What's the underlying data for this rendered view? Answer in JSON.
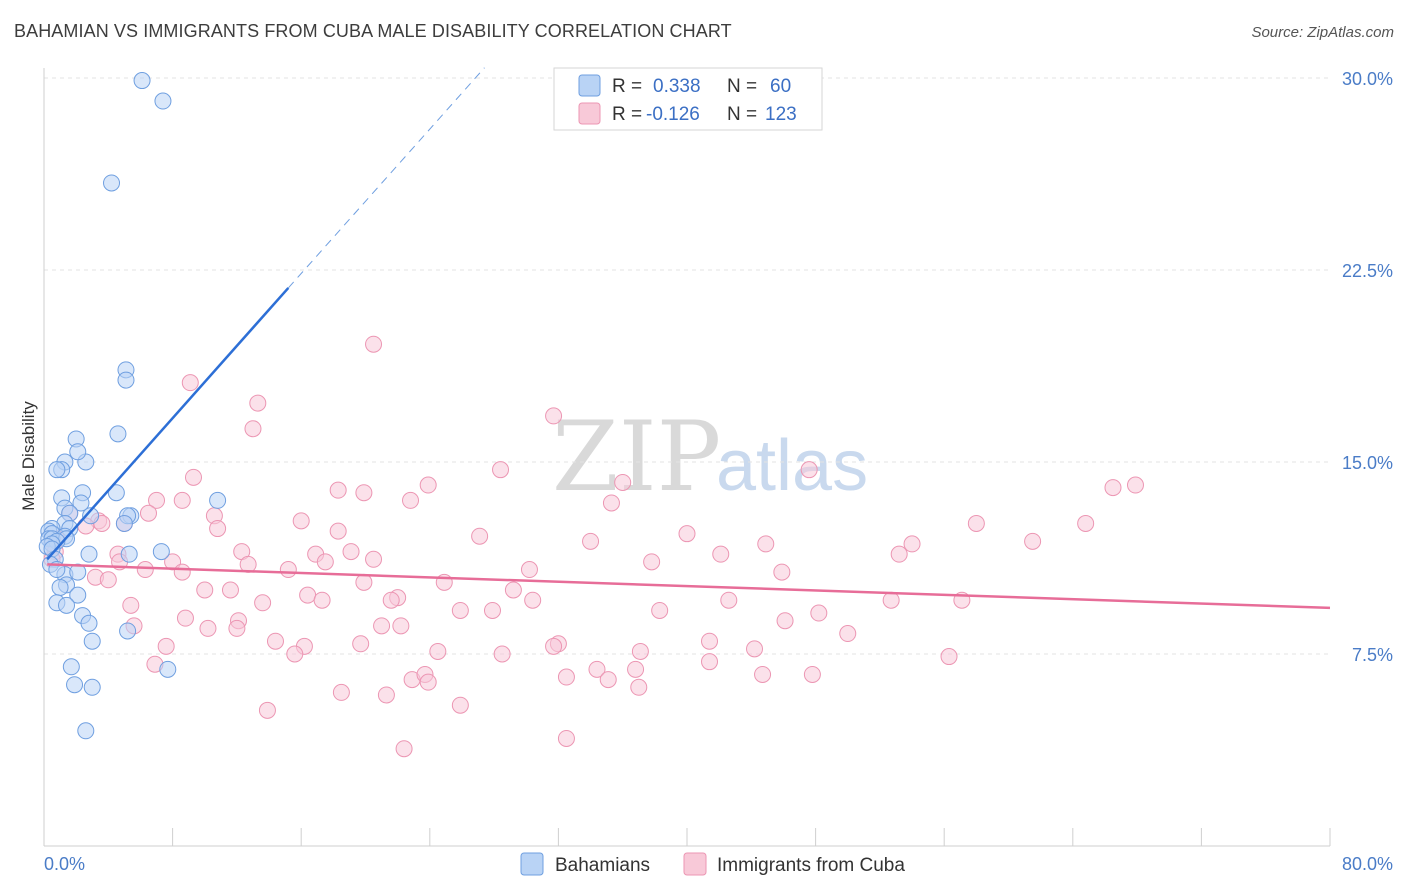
{
  "header": {
    "title": "BAHAMIAN VS IMMIGRANTS FROM CUBA MALE DISABILITY CORRELATION CHART",
    "source": "Source: ZipAtlas.com"
  },
  "watermark": {
    "zip": "ZIP",
    "atlas": "atlas"
  },
  "colors": {
    "blue_fill": "#b9d3f5",
    "blue_stroke": "#6f9fe0",
    "blue_line": "#2d6fd6",
    "pink_fill": "#f8c9d8",
    "pink_stroke": "#ec96b3",
    "pink_line": "#e76d98",
    "grid": "#e3e3e3",
    "tick_label": "#4a7cc7"
  },
  "legend": {
    "rows": [
      {
        "r_label": "R =",
        "r_value": "0.338",
        "n_label": "N =",
        "n_value": "60"
      },
      {
        "r_label": "R =",
        "r_value": "-0.126",
        "n_label": "N =",
        "n_value": "123"
      }
    ],
    "bottom": [
      "Bahamians",
      "Immigrants from Cuba"
    ]
  },
  "chart_data": {
    "type": "scatter",
    "title": "BAHAMIAN VS IMMIGRANTS FROM CUBA MALE DISABILITY CORRELATION CHART",
    "xlabel": "",
    "ylabel": "Male Disability",
    "xlim": [
      0,
      80
    ],
    "ylim": [
      0,
      30
    ],
    "x_tick_labels": [
      "0.0%",
      "80.0%"
    ],
    "y_ticks": [
      7.5,
      15.0,
      22.5,
      30.0
    ],
    "y_tick_labels": [
      "7.5%",
      "15.0%",
      "22.5%",
      "30.0%"
    ],
    "grid": true,
    "legend_position": "top-center",
    "series": [
      {
        "name": "Bahamians",
        "R": 0.338,
        "N": 60,
        "trend": {
          "x": [
            0.2,
            15.2
          ],
          "y": [
            11.2,
            21.8
          ],
          "dashed_extension": {
            "x": [
              15.2,
              27.4
            ],
            "y": [
              21.8,
              30.4
            ]
          }
        },
        "points": [
          [
            6.1,
            29.9
          ],
          [
            7.4,
            29.1
          ],
          [
            4.2,
            25.9
          ],
          [
            5.1,
            18.6
          ],
          [
            5.1,
            18.2
          ],
          [
            4.6,
            16.1
          ],
          [
            2.0,
            15.9
          ],
          [
            1.3,
            15.0
          ],
          [
            1.1,
            14.7
          ],
          [
            2.6,
            15.0
          ],
          [
            0.8,
            14.7
          ],
          [
            2.1,
            15.4
          ],
          [
            1.1,
            13.6
          ],
          [
            2.4,
            13.8
          ],
          [
            4.5,
            13.8
          ],
          [
            10.8,
            13.5
          ],
          [
            2.3,
            13.4
          ],
          [
            1.3,
            13.2
          ],
          [
            1.6,
            13.0
          ],
          [
            2.9,
            12.9
          ],
          [
            5.4,
            12.9
          ],
          [
            5.2,
            12.9
          ],
          [
            1.3,
            12.6
          ],
          [
            1.6,
            12.4
          ],
          [
            5.0,
            12.6
          ],
          [
            0.5,
            12.4
          ],
          [
            0.3,
            12.3
          ],
          [
            0.5,
            12.2
          ],
          [
            1.3,
            12.1
          ],
          [
            0.3,
            12.0
          ],
          [
            0.5,
            12.0
          ],
          [
            1.4,
            12.0
          ],
          [
            0.8,
            11.9
          ],
          [
            0.5,
            11.8
          ],
          [
            0.2,
            11.7
          ],
          [
            0.5,
            11.6
          ],
          [
            2.8,
            11.4
          ],
          [
            5.3,
            11.4
          ],
          [
            7.3,
            11.5
          ],
          [
            0.7,
            11.2
          ],
          [
            0.4,
            11.0
          ],
          [
            1.3,
            10.6
          ],
          [
            0.8,
            10.8
          ],
          [
            2.1,
            10.7
          ],
          [
            1.4,
            10.2
          ],
          [
            1.0,
            10.1
          ],
          [
            2.1,
            9.8
          ],
          [
            0.8,
            9.5
          ],
          [
            1.4,
            9.4
          ],
          [
            2.4,
            9.0
          ],
          [
            2.8,
            8.7
          ],
          [
            5.2,
            8.4
          ],
          [
            3.0,
            8.0
          ],
          [
            1.7,
            7.0
          ],
          [
            7.7,
            6.9
          ],
          [
            1.9,
            6.3
          ],
          [
            3.0,
            6.2
          ],
          [
            2.6,
            4.5
          ]
        ]
      },
      {
        "name": "Immigrants from Cuba",
        "R": -0.126,
        "N": 123,
        "trend": {
          "x": [
            0.2,
            80.0
          ],
          "y": [
            11.0,
            9.3
          ]
        },
        "points": [
          [
            20.5,
            19.6
          ],
          [
            9.1,
            18.1
          ],
          [
            13.3,
            17.3
          ],
          [
            31.7,
            16.8
          ],
          [
            13.0,
            16.3
          ],
          [
            28.4,
            14.7
          ],
          [
            47.6,
            14.7
          ],
          [
            9.3,
            14.4
          ],
          [
            18.3,
            13.9
          ],
          [
            19.9,
            13.8
          ],
          [
            23.9,
            14.1
          ],
          [
            36.0,
            14.2
          ],
          [
            66.5,
            14.0
          ],
          [
            67.9,
            14.1
          ],
          [
            7.0,
            13.5
          ],
          [
            8.6,
            13.5
          ],
          [
            22.8,
            13.5
          ],
          [
            35.3,
            13.4
          ],
          [
            1.6,
            13.0
          ],
          [
            3.4,
            12.7
          ],
          [
            6.5,
            13.0
          ],
          [
            10.6,
            12.9
          ],
          [
            16.0,
            12.7
          ],
          [
            2.6,
            12.5
          ],
          [
            3.6,
            12.6
          ],
          [
            5.0,
            12.6
          ],
          [
            10.8,
            12.4
          ],
          [
            18.3,
            12.3
          ],
          [
            27.1,
            12.1
          ],
          [
            40.0,
            12.2
          ],
          [
            58.0,
            12.6
          ],
          [
            64.8,
            12.6
          ],
          [
            0.8,
            12.0
          ],
          [
            0.5,
            11.8
          ],
          [
            34.0,
            11.9
          ],
          [
            44.9,
            11.8
          ],
          [
            61.5,
            11.9
          ],
          [
            0.7,
            11.5
          ],
          [
            4.6,
            11.4
          ],
          [
            12.3,
            11.5
          ],
          [
            16.9,
            11.4
          ],
          [
            19.1,
            11.5
          ],
          [
            42.1,
            11.4
          ],
          [
            53.2,
            11.4
          ],
          [
            54.0,
            11.8
          ],
          [
            0.5,
            11.2
          ],
          [
            4.7,
            11.1
          ],
          [
            8.0,
            11.1
          ],
          [
            12.7,
            11.0
          ],
          [
            17.5,
            11.1
          ],
          [
            37.8,
            11.1
          ],
          [
            6.3,
            10.8
          ],
          [
            8.6,
            10.7
          ],
          [
            15.2,
            10.8
          ],
          [
            30.2,
            10.8
          ],
          [
            45.9,
            10.7
          ],
          [
            3.2,
            10.5
          ],
          [
            4.0,
            10.4
          ],
          [
            19.9,
            10.3
          ],
          [
            24.9,
            10.3
          ],
          [
            29.2,
            10.0
          ],
          [
            10.0,
            10.0
          ],
          [
            11.6,
            10.0
          ],
          [
            16.4,
            9.8
          ],
          [
            22.0,
            9.7
          ],
          [
            17.3,
            9.6
          ],
          [
            21.6,
            9.6
          ],
          [
            30.4,
            9.6
          ],
          [
            42.6,
            9.6
          ],
          [
            52.7,
            9.6
          ],
          [
            57.1,
            9.6
          ],
          [
            13.6,
            9.5
          ],
          [
            5.4,
            9.4
          ],
          [
            25.9,
            9.2
          ],
          [
            27.9,
            9.2
          ],
          [
            38.3,
            9.2
          ],
          [
            48.2,
            9.1
          ],
          [
            8.8,
            8.9
          ],
          [
            12.1,
            8.8
          ],
          [
            21.0,
            8.6
          ],
          [
            22.2,
            8.6
          ],
          [
            46.1,
            8.8
          ],
          [
            5.6,
            8.6
          ],
          [
            10.2,
            8.5
          ],
          [
            12.0,
            8.5
          ],
          [
            50.0,
            8.3
          ],
          [
            14.4,
            8.0
          ],
          [
            19.7,
            7.9
          ],
          [
            32.0,
            7.9
          ],
          [
            41.4,
            8.0
          ],
          [
            44.2,
            7.7
          ],
          [
            7.6,
            7.8
          ],
          [
            16.2,
            7.8
          ],
          [
            24.5,
            7.6
          ],
          [
            31.7,
            7.8
          ],
          [
            37.1,
            7.6
          ],
          [
            41.4,
            7.2
          ],
          [
            56.3,
            7.4
          ],
          [
            6.9,
            7.1
          ],
          [
            15.6,
            7.5
          ],
          [
            28.5,
            7.5
          ],
          [
            34.4,
            6.9
          ],
          [
            36.8,
            6.9
          ],
          [
            32.5,
            6.6
          ],
          [
            22.9,
            6.5
          ],
          [
            23.7,
            6.7
          ],
          [
            35.1,
            6.5
          ],
          [
            44.7,
            6.7
          ],
          [
            47.8,
            6.7
          ],
          [
            37.0,
            6.2
          ],
          [
            23.9,
            6.4
          ],
          [
            18.5,
            6.0
          ],
          [
            21.3,
            5.9
          ],
          [
            25.9,
            5.5
          ],
          [
            13.9,
            5.3
          ],
          [
            32.5,
            4.2
          ],
          [
            22.4,
            3.8
          ],
          [
            20.5,
            11.2
          ]
        ]
      }
    ]
  }
}
